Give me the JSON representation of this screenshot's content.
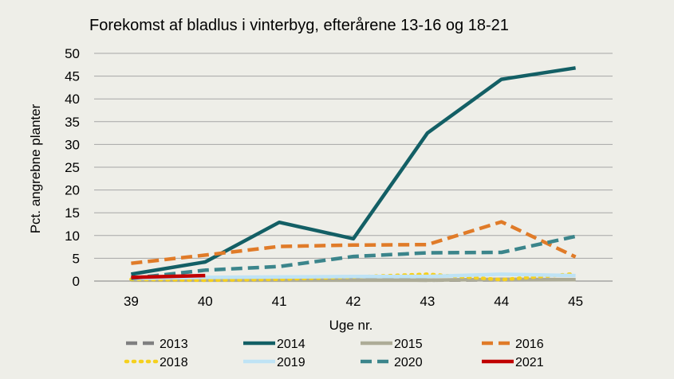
{
  "chart_data": {
    "type": "line",
    "title": "Forekomst af bladlus  i vinterbyg,  efterårene 13-16 og 18-21",
    "xlabel": "Uge nr.",
    "ylabel": "Pct. angrebne planter",
    "categories": [
      "39",
      "40",
      "41",
      "42",
      "43",
      "44",
      "45"
    ],
    "ylim": [
      0,
      50
    ],
    "yticks": [
      "0",
      "5",
      "10",
      "15",
      "20",
      "25",
      "30",
      "35",
      "40",
      "45",
      "50"
    ],
    "grid": "horizontal",
    "legend_position": "bottom",
    "series": [
      {
        "name": "2013",
        "color": "#808080",
        "dash": "dashed",
        "values": [
          0.5,
          0.5,
          0.4,
          0.3,
          0.2,
          0.3,
          0.3
        ]
      },
      {
        "name": "2014",
        "color": "#135f65",
        "dash": "solid",
        "values": [
          1.5,
          4.2,
          12.9,
          9.3,
          32.5,
          44.3,
          46.8
        ]
      },
      {
        "name": "2015",
        "color": "#adac97",
        "dash": "solid",
        "values": [
          0.2,
          0.2,
          0.2,
          0.2,
          0.2,
          0.4,
          0.3
        ]
      },
      {
        "name": "2016",
        "color": "#e07b28",
        "dash": "dashed",
        "values": [
          3.9,
          5.7,
          7.6,
          7.9,
          8.0,
          13.0,
          5.3
        ]
      },
      {
        "name": "2018",
        "color": "#f5d01e",
        "dash": "dotted",
        "values": [
          0.4,
          0.2,
          0.4,
          0.9,
          1.5,
          0.3,
          1.6
        ]
      },
      {
        "name": "2019",
        "color": "#bfe3f5",
        "dash": "solid",
        "values": [
          0.6,
          0.8,
          0.9,
          1.0,
          1.0,
          1.5,
          1.2
        ]
      },
      {
        "name": "2020",
        "color": "#3b858b",
        "dash": "dashed",
        "values": [
          0.6,
          2.4,
          3.2,
          5.4,
          6.2,
          6.3,
          9.8
        ]
      },
      {
        "name": "2021",
        "color": "#c00000",
        "dash": "solid",
        "values": [
          0.8,
          1.2,
          null,
          null,
          null,
          null,
          null
        ]
      }
    ]
  },
  "colors": {
    "background": "#eeeee8",
    "grid": "#a6a6a6",
    "axis": "#808080"
  }
}
